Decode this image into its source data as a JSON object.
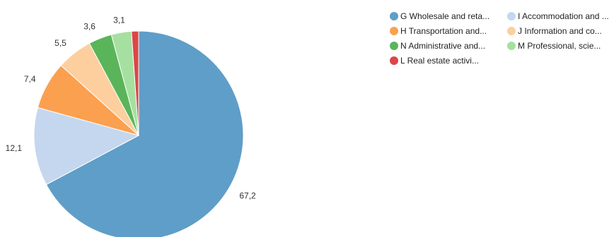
{
  "chart_data": {
    "type": "pie",
    "slices": [
      {
        "name": "G Wholesale and reta...",
        "value": 67.2,
        "label": "67,2",
        "color": "#5f9ec8"
      },
      {
        "name": "I Accommodation and ...",
        "value": 12.1,
        "label": "12,1",
        "color": "#c5d7ee"
      },
      {
        "name": "H Transportation and...",
        "value": 7.4,
        "label": "7,4",
        "color": "#fba04f"
      },
      {
        "name": "J Information and co...",
        "value": 5.5,
        "label": "5,5",
        "color": "#fdcf9e"
      },
      {
        "name": "N Administrative and...",
        "value": 3.6,
        "label": "3,6",
        "color": "#5ab55a"
      },
      {
        "name": "M Professional, scie...",
        "value": 3.1,
        "label": "3,1",
        "color": "#a6e0a0"
      },
      {
        "name": "L Real estate activi...",
        "value": 1.1,
        "label": "",
        "color": "#dc4646"
      }
    ],
    "legend_position": "top-right"
  }
}
